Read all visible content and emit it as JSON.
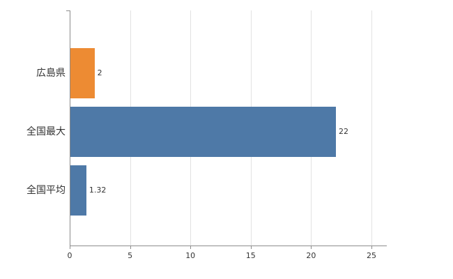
{
  "chart_data": {
    "type": "bar",
    "orientation": "horizontal",
    "title": "",
    "xlabel": "",
    "ylabel": "",
    "categories": [
      "広島県",
      "全国最大",
      "全国平均"
    ],
    "values": [
      2,
      22,
      1.32
    ],
    "value_labels": [
      "2",
      "22",
      "1.32"
    ],
    "bar_colors": [
      "#ed8b33",
      "#4e79a7",
      "#4e79a7"
    ],
    "x_ticks": [
      0,
      5,
      10,
      15,
      20,
      25
    ],
    "xlim": [
      0,
      26.3
    ],
    "grid": "vertical-gridlines",
    "legend": "none",
    "colors": {
      "background": "#ffffff",
      "gridline": "#e2e2e2",
      "axis": "#8c8c8c",
      "label_text": "#333333"
    }
  }
}
